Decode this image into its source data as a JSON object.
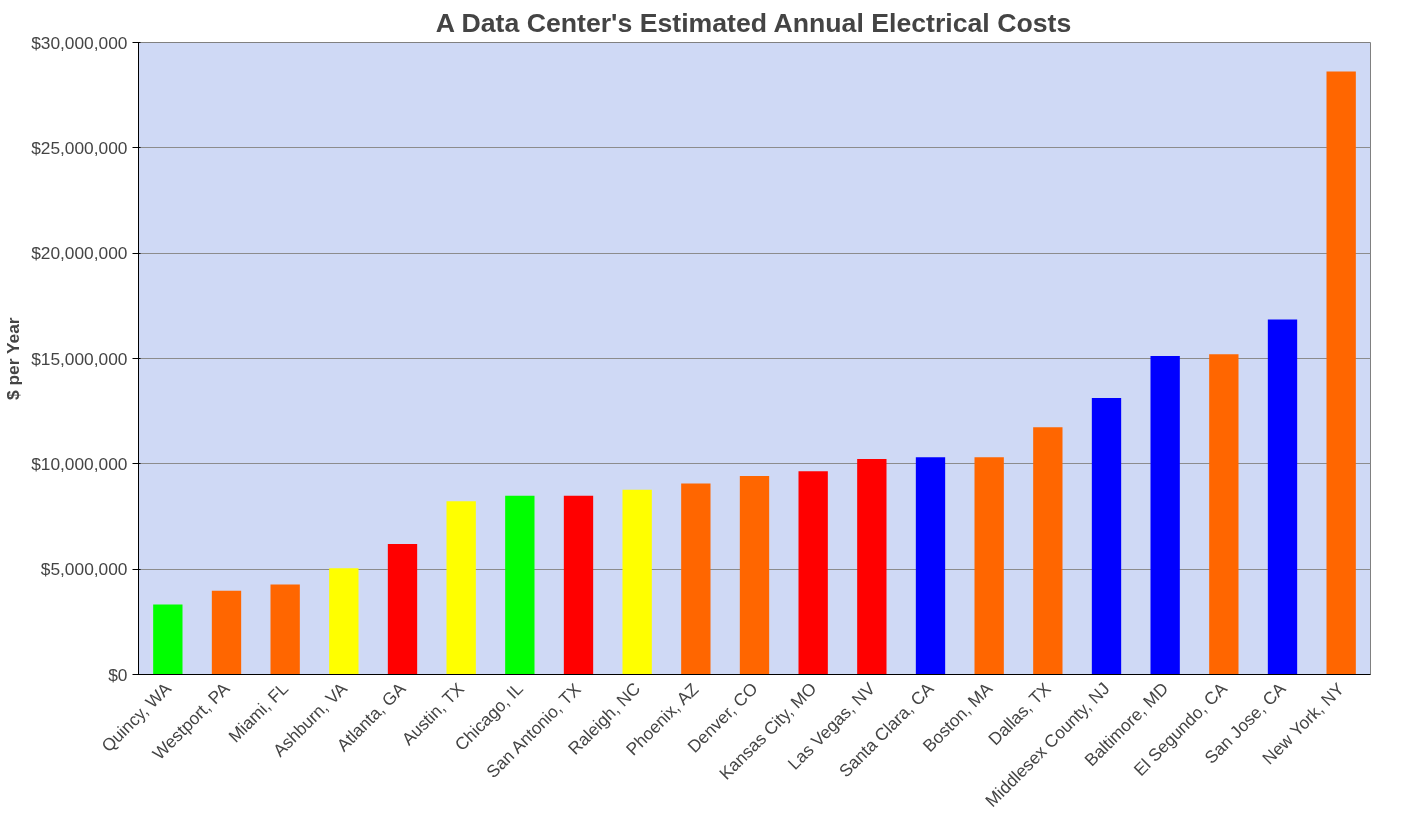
{
  "chart_data": {
    "type": "bar",
    "title": "A Data Center's Estimated Annual Electrical Costs",
    "ylabel": "$ per Year",
    "categories": [
      "Quincy, WA",
      "Westport, PA",
      "Miami, FL",
      "Ashburn, VA",
      "Atlanta, GA",
      "Austin, TX",
      "Chicago, IL",
      "San Antonio, TX",
      "Raleigh, NC",
      "Phoenix, AZ",
      "Denver, CO",
      "Kansas City, MO",
      "Las Vegas, NV",
      "Santa Clara, CA",
      "Boston, MA",
      "Dallas, TX",
      "Middlesex County, NJ",
      "Baltimore, MD",
      "El Segundo, CA",
      "San Jose, CA",
      "New York, NY"
    ],
    "values": [
      3320000,
      3970000,
      4270000,
      5040000,
      6190000,
      8220000,
      8490000,
      8490000,
      8770000,
      9070000,
      9420000,
      9650000,
      10230000,
      10310000,
      10310000,
      11740000,
      13120000,
      15120000,
      15200000,
      16850000,
      28620000
    ],
    "colors": [
      "#00ff00",
      "#ff6600",
      "#ff6600",
      "#ffff00",
      "#ff0000",
      "#ffff00",
      "#00ff00",
      "#ff0000",
      "#ffff00",
      "#ff6600",
      "#ff6600",
      "#ff0000",
      "#ff0000",
      "#0000ff",
      "#ff6600",
      "#ff6600",
      "#0000ff",
      "#0000ff",
      "#ff6600",
      "#0000ff",
      "#ff6600"
    ],
    "ylim": [
      0,
      30000000
    ],
    "yticks": [
      {
        "value": 0,
        "label": "$0"
      },
      {
        "value": 5000000,
        "label": "$5,000,000"
      },
      {
        "value": 10000000,
        "label": "$10,000,000"
      },
      {
        "value": 15000000,
        "label": "$15,000,000"
      },
      {
        "value": 20000000,
        "label": "$20,000,000"
      },
      {
        "value": 25000000,
        "label": "$25,000,000"
      },
      {
        "value": 30000000,
        "label": "$30,000,000"
      }
    ],
    "grid": "y"
  }
}
